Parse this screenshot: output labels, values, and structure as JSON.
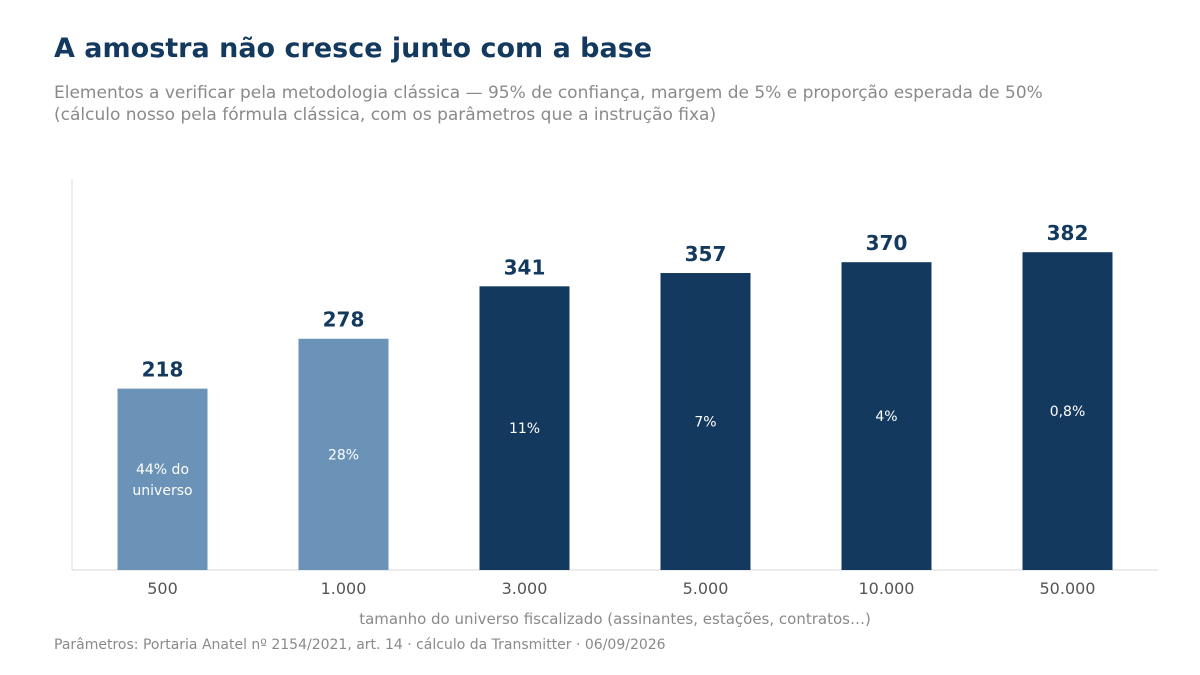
{
  "header": {
    "title": "A amostra não cresce junto com a base",
    "subtitle_line1": "Elementos a verificar pela metodologia clássica — 95% de confiança, margem de 5% e proporção esperada de 50%",
    "subtitle_line2": "(cálculo nosso pela fórmula clássica, com os parâmetros que a instrução fixa)"
  },
  "footnote": "Parâmetros: Portaria Anatel nº 2154/2021, art. 14 · cálculo da Transmitter · 06/09/2026",
  "chart_data": {
    "type": "bar",
    "categories": [
      "500",
      "1.000",
      "3.000",
      "5.000",
      "10.000",
      "50.000"
    ],
    "values": [
      218,
      278,
      341,
      357,
      370,
      382
    ],
    "value_labels": [
      "218",
      "278",
      "341",
      "357",
      "370",
      "382"
    ],
    "inner_labels": [
      [
        "44% do",
        "universo"
      ],
      [
        "28%"
      ],
      [
        "11%"
      ],
      [
        "7%"
      ],
      [
        "4%"
      ],
      [
        "0,8%"
      ]
    ],
    "bar_colors": [
      "#6b93b7",
      "#6b93b7",
      "#14395e",
      "#14395e",
      "#14395e",
      "#14395e"
    ],
    "xlabel": "tamanho do universo fiscalizado (assinantes, estações, contratos…)",
    "ylabel": "",
    "ylim": [
      0,
      470
    ],
    "grid": false
  }
}
